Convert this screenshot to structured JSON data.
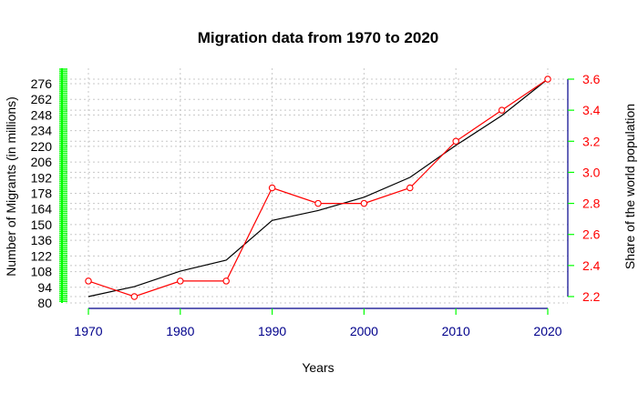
{
  "chart_data": {
    "type": "line",
    "title": "Migration data from 1970 to 2020",
    "xlabel": "Years",
    "ylabel_left": "Number of Migrants (in millions)",
    "ylabel_right": "Share of the world population",
    "x": [
      1970,
      1975,
      1980,
      1985,
      1990,
      1995,
      2000,
      2005,
      2010,
      2015,
      2020
    ],
    "x_ticks": [
      "1970",
      "1980",
      "1990",
      "2000",
      "2010",
      "2020"
    ],
    "xlim": [
      1970,
      2020
    ],
    "y_left_ticks": [
      "80",
      "94",
      "108",
      "122",
      "136",
      "150",
      "164",
      "178",
      "192",
      "206",
      "220",
      "234",
      "248",
      "262",
      "276"
    ],
    "y_left_range": [
      84,
      281
    ],
    "y_right_ticks": [
      "2.2",
      "2.4",
      "2.6",
      "2.8",
      "3.0",
      "3.2",
      "3.4",
      "3.6"
    ],
    "y_right_range": [
      2.2,
      3.6
    ],
    "grid": true,
    "series": [
      {
        "axis": "left",
        "style": "line",
        "color": "#000000",
        "values": [
          84,
          93,
          107,
          117,
          153,
          162,
          174,
          192,
          221,
          248,
          281
        ]
      },
      {
        "axis": "right",
        "style": "line+points",
        "color": "#ff0000",
        "values": [
          2.3,
          2.2,
          2.3,
          2.3,
          2.9,
          2.8,
          2.8,
          2.9,
          3.2,
          3.4,
          3.6
        ]
      }
    ],
    "colors": {
      "left_axis": "#00ff00",
      "right_axis_line": "#00008b",
      "right_axis_ticks": "#00ff00",
      "right_tick_labels": "#ff0000",
      "bottom_axis": "#00ff00",
      "bottom_tick_labels": "#00008b",
      "grid": "#c8c8c8"
    }
  }
}
